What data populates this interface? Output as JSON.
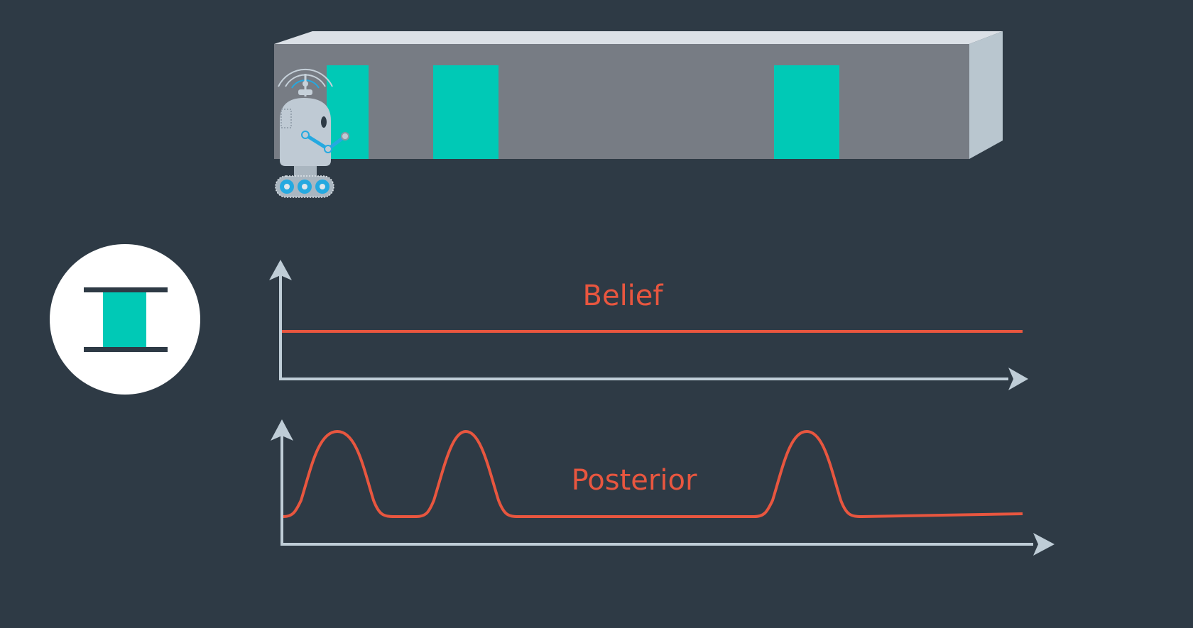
{
  "colors": {
    "background": "#2e3a45",
    "wall_front": "#777c84",
    "wall_top": "#dbe0e6",
    "wall_side": "#b9c6cf",
    "door": "#00c9b6",
    "curve": "#e8563f",
    "axis": "#bfcdd7",
    "circle": "#ffffff",
    "robot_body": "#bfcad4",
    "robot_accent": "#25a9e0"
  },
  "icons": {
    "robot": "robot-icon",
    "sensor": "door-sensor-icon"
  },
  "corridor": {
    "doors": 3
  },
  "belief": {
    "label": "Belief"
  },
  "posterior": {
    "label": "Posterior",
    "peaks": 3
  }
}
